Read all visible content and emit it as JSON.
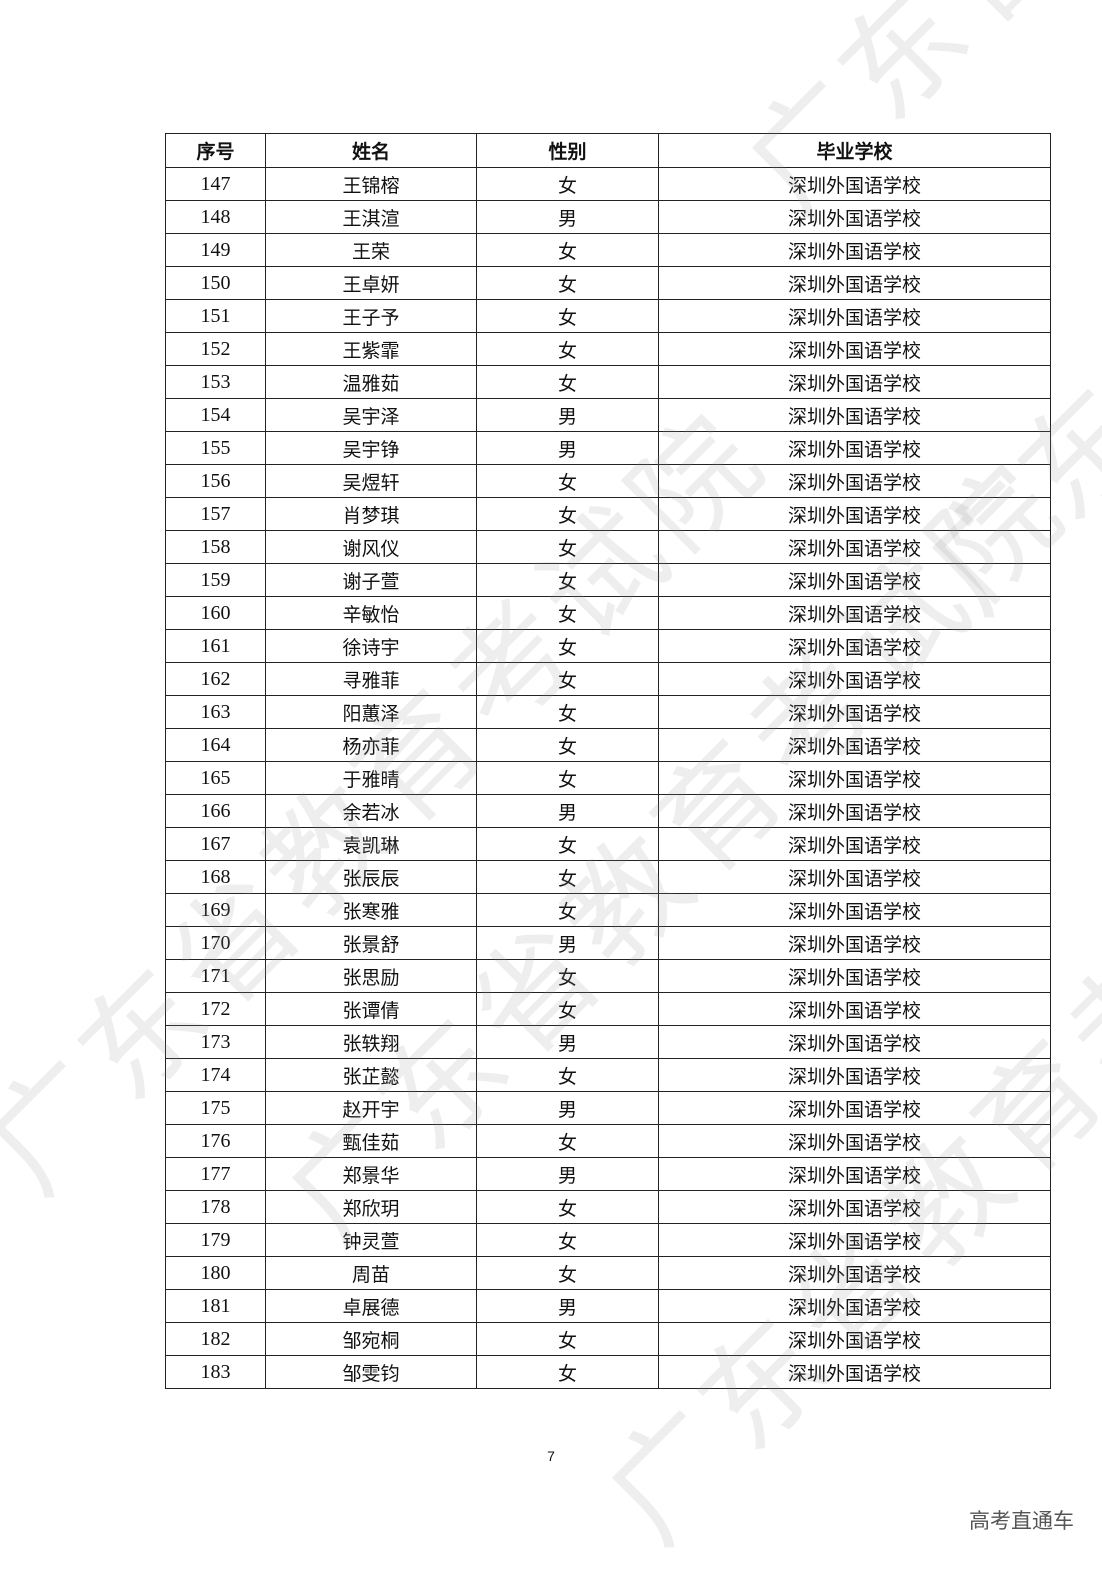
{
  "watermark": "广东省教育考试院",
  "table": {
    "headers": [
      "序号",
      "姓名",
      "性别",
      "毕业学校"
    ],
    "rows": [
      [
        "147",
        "王锦榕",
        "女",
        "深圳外国语学校"
      ],
      [
        "148",
        "王淇渲",
        "男",
        "深圳外国语学校"
      ],
      [
        "149",
        "王荣",
        "女",
        "深圳外国语学校"
      ],
      [
        "150",
        "王卓妍",
        "女",
        "深圳外国语学校"
      ],
      [
        "151",
        "王子予",
        "女",
        "深圳外国语学校"
      ],
      [
        "152",
        "王紫霏",
        "女",
        "深圳外国语学校"
      ],
      [
        "153",
        "温雅茹",
        "女",
        "深圳外国语学校"
      ],
      [
        "154",
        "吴宇泽",
        "男",
        "深圳外国语学校"
      ],
      [
        "155",
        "吴宇铮",
        "男",
        "深圳外国语学校"
      ],
      [
        "156",
        "吴煜轩",
        "女",
        "深圳外国语学校"
      ],
      [
        "157",
        "肖梦琪",
        "女",
        "深圳外国语学校"
      ],
      [
        "158",
        "谢风仪",
        "女",
        "深圳外国语学校"
      ],
      [
        "159",
        "谢子萱",
        "女",
        "深圳外国语学校"
      ],
      [
        "160",
        "辛敏怡",
        "女",
        "深圳外国语学校"
      ],
      [
        "161",
        "徐诗宇",
        "女",
        "深圳外国语学校"
      ],
      [
        "162",
        "寻雅菲",
        "女",
        "深圳外国语学校"
      ],
      [
        "163",
        "阳蕙泽",
        "女",
        "深圳外国语学校"
      ],
      [
        "164",
        "杨亦菲",
        "女",
        "深圳外国语学校"
      ],
      [
        "165",
        "于雅晴",
        "女",
        "深圳外国语学校"
      ],
      [
        "166",
        "余若冰",
        "男",
        "深圳外国语学校"
      ],
      [
        "167",
        "袁凯琳",
        "女",
        "深圳外国语学校"
      ],
      [
        "168",
        "张辰辰",
        "女",
        "深圳外国语学校"
      ],
      [
        "169",
        "张寒雅",
        "女",
        "深圳外国语学校"
      ],
      [
        "170",
        "张景舒",
        "男",
        "深圳外国语学校"
      ],
      [
        "171",
        "张思励",
        "女",
        "深圳外国语学校"
      ],
      [
        "172",
        "张谭倩",
        "女",
        "深圳外国语学校"
      ],
      [
        "173",
        "张轶翔",
        "男",
        "深圳外国语学校"
      ],
      [
        "174",
        "张芷懿",
        "女",
        "深圳外国语学校"
      ],
      [
        "175",
        "赵开宇",
        "男",
        "深圳外国语学校"
      ],
      [
        "176",
        "甄佳茹",
        "女",
        "深圳外国语学校"
      ],
      [
        "177",
        "郑景华",
        "男",
        "深圳外国语学校"
      ],
      [
        "178",
        "郑欣玥",
        "女",
        "深圳外国语学校"
      ],
      [
        "179",
        "钟灵萱",
        "女",
        "深圳外国语学校"
      ],
      [
        "180",
        "周苗",
        "女",
        "深圳外国语学校"
      ],
      [
        "181",
        "卓展德",
        "男",
        "深圳外国语学校"
      ],
      [
        "182",
        "邹宛桐",
        "女",
        "深圳外国语学校"
      ],
      [
        "183",
        "邹雯钧",
        "女",
        "深圳外国语学校"
      ]
    ]
  },
  "footer": {
    "page_number": "7",
    "brand": "高考直通车"
  }
}
